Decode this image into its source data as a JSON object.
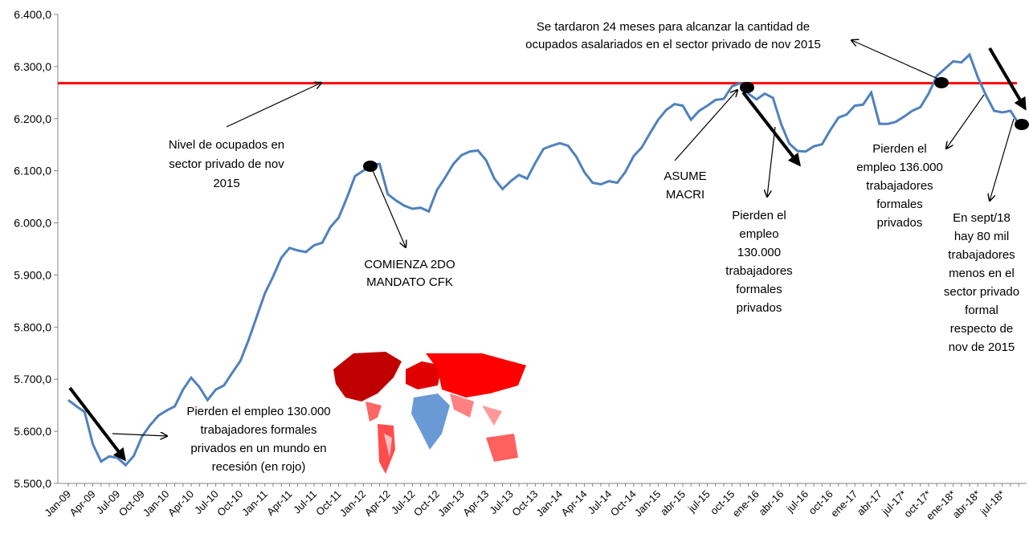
{
  "chart_data": {
    "type": "line",
    "categories": [
      "Jan-09",
      null,
      null,
      "Apr-09",
      null,
      null,
      "Jul-09",
      null,
      null,
      "Oct-09",
      null,
      null,
      "Jan-10",
      null,
      null,
      "Apr-10",
      null,
      null,
      "Jul-10",
      null,
      null,
      "Oct-10",
      null,
      null,
      "Jan-11",
      null,
      null,
      "Apr-11",
      null,
      null,
      "Jul-11",
      null,
      null,
      "Oct-11",
      null,
      null,
      "Jan-12",
      null,
      null,
      "Apr-12",
      null,
      null,
      "Jul-12",
      null,
      null,
      "Oct-12",
      null,
      null,
      "Jan-13",
      null,
      null,
      "Apr-13",
      null,
      null,
      "Jul-13",
      null,
      null,
      "Oct-13",
      null,
      null,
      "Jan-14",
      null,
      null,
      "Apr-14",
      null,
      null,
      "Jul-14",
      null,
      null,
      "Oct-14",
      null,
      null,
      "Jan-15",
      null,
      null,
      "abr-15",
      null,
      null,
      "jul-15",
      null,
      null,
      "oct-15",
      null,
      null,
      "ene-16",
      null,
      null,
      "abr-16",
      null,
      null,
      "jul-16",
      null,
      null,
      "oct-16",
      null,
      null,
      "ene-17",
      null,
      null,
      "abr-17",
      null,
      null,
      "jul-17*",
      null,
      null,
      "oct-17*",
      null,
      null,
      "ene-18*",
      null,
      null,
      "abr-18*",
      null,
      null,
      "jul-18*",
      null,
      null
    ],
    "series": [
      {
        "color": "#4f81bd",
        "values": [
          5660,
          5648,
          5637,
          5575,
          5542,
          5552,
          5549,
          5535,
          5553,
          5590,
          5612,
          5630,
          5640,
          5648,
          5680,
          5703,
          5685,
          5660,
          5680,
          5688,
          5712,
          5735,
          5775,
          5820,
          5865,
          5897,
          5933,
          5952,
          5947,
          5944,
          5957,
          5962,
          5992,
          6010,
          6048,
          6090,
          6100,
          6112,
          6113,
          6055,
          6043,
          6033,
          6027,
          6029,
          6022,
          6063,
          6087,
          6113,
          6130,
          6137,
          6139,
          6120,
          6085,
          6065,
          6080,
          6092,
          6085,
          6115,
          6142,
          6148,
          6153,
          6148,
          6127,
          6097,
          6077,
          6074,
          6080,
          6077,
          6098,
          6128,
          6145,
          6172,
          6198,
          6217,
          6228,
          6225,
          6198,
          6215,
          6225,
          6236,
          6238,
          6262,
          6268,
          6248,
          6237,
          6248,
          6240,
          6190,
          6152,
          6138,
          6137,
          6147,
          6151,
          6178,
          6202,
          6208,
          6225,
          6227,
          6250,
          6190,
          6190,
          6194,
          6204,
          6215,
          6222,
          6248,
          6282,
          6296,
          6310,
          6308,
          6323,
          6280,
          6245,
          6215,
          6212,
          6215,
          6190
        ]
      }
    ],
    "reference_line": {
      "value": 6268,
      "color": "#ff0000"
    },
    "ylim": [
      5500,
      6400
    ],
    "yticks": [
      {
        "value": 5500,
        "label": "5.500,0"
      },
      {
        "value": 5600,
        "label": "5.600,0"
      },
      {
        "value": 5700,
        "label": "5.700,0"
      },
      {
        "value": 5800,
        "label": "5.800,0"
      },
      {
        "value": 5900,
        "label": "5.900,0"
      },
      {
        "value": 6000,
        "label": "6.000,0"
      },
      {
        "value": 6100,
        "label": "6.100,0"
      },
      {
        "value": 6200,
        "label": "6.200,0"
      },
      {
        "value": 6300,
        "label": "6.300,0"
      },
      {
        "value": 6400,
        "label": "6.400,0"
      }
    ],
    "annotations": [
      {
        "lines": [
          "Se tardaron 24 meses para alcanzar la cantidad de",
          "ocupados asalariados en el sector privado de nov 2015"
        ]
      },
      {
        "lines": [
          "Nivel de ocupados en",
          "sector privado de nov",
          "2015"
        ]
      },
      {
        "lines": [
          "COMIENZA 2DO",
          "MANDATO CFK"
        ]
      },
      {
        "lines": [
          "ASUME",
          "MACRI"
        ]
      },
      {
        "lines": [
          "Pierden el",
          "empleo",
          "130.000",
          "trabajadores",
          "formales",
          "privados"
        ]
      },
      {
        "lines": [
          "Pierden el",
          "empleo 136.000",
          "trabajadores",
          "formales",
          "privados"
        ]
      },
      {
        "lines": [
          "En sept/18",
          "hay 80 mil",
          "trabajadores",
          "menos en el",
          "sector privado",
          "formal",
          "respecto de",
          "nov de 2015"
        ]
      },
      {
        "lines": [
          "Pierden el empleo 130.000",
          "trabajadores formales",
          "privados en un mundo en",
          "recesión (en rojo)"
        ]
      }
    ]
  }
}
